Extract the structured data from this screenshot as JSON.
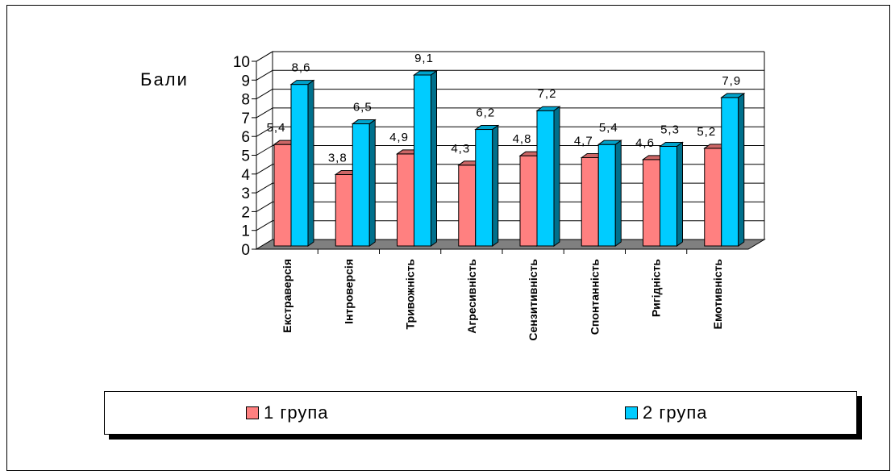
{
  "chart_data": {
    "type": "bar",
    "ylabel": "Бали",
    "xlabel": "",
    "ylim": [
      0,
      10
    ],
    "yticks": [
      "0",
      "1",
      "2",
      "3",
      "4",
      "5",
      "6",
      "7",
      "8",
      "9",
      "10"
    ],
    "categories": [
      "Екстраверсія",
      "Інтроверсія",
      "Тривожність",
      "Агресивність",
      "Сензитивність",
      "Спонтанність",
      "Ригідність",
      "Емотивність"
    ],
    "series": [
      {
        "name": "1 група",
        "color": "#ff8080",
        "values": [
          5.4,
          3.8,
          4.9,
          4.3,
          4.8,
          4.7,
          4.6,
          5.2
        ],
        "labels": [
          "5,4",
          "3,8",
          "4,9",
          "4,3",
          "4,8",
          "4,7",
          "4,6",
          "5,2"
        ]
      },
      {
        "name": "2 група",
        "color": "#00ccff",
        "values": [
          8.6,
          6.5,
          9.1,
          6.2,
          7.2,
          5.4,
          5.3,
          7.9
        ],
        "labels": [
          "8,6",
          "6,5",
          "9,1",
          "6,2",
          "7,2",
          "5,4",
          "5,3",
          "7,9"
        ]
      }
    ],
    "grid": true,
    "legend": "bottom",
    "style": "3d"
  }
}
